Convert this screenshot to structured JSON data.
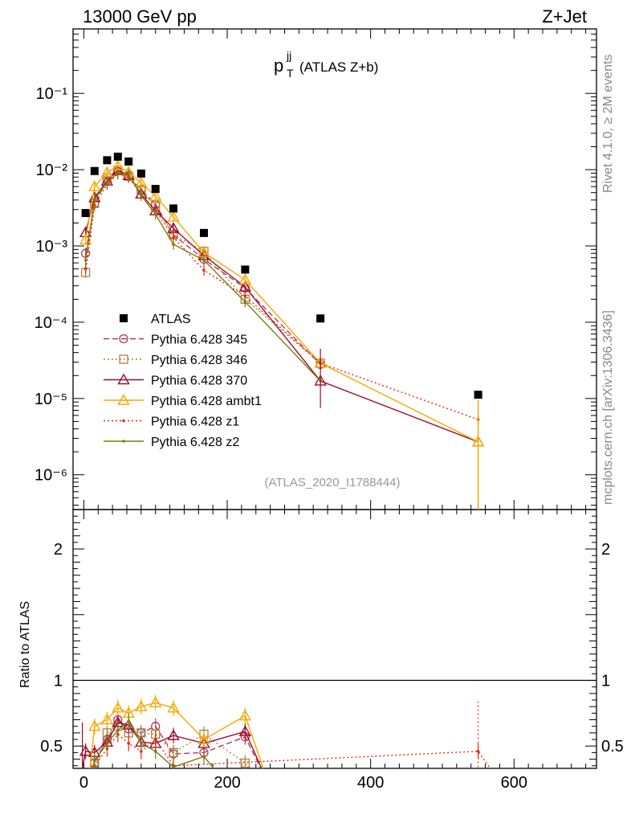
{
  "header": {
    "left": "13000 GeV pp",
    "right": "Z+Jet"
  },
  "side_labels": {
    "rivet": "Rivet 4.1.0, ≥ 2M events",
    "source": "mcplots.cern.ch [arXiv:1306.3436]"
  },
  "chart_data": {
    "type": "line",
    "title_main": "p",
    "title_sup": "jj",
    "title_sub": "T",
    "title_rest": "(ATLAS Z+b)",
    "analysis_tag": "(ATLAS_2020_I1788444)",
    "ratio_ylabel": "Ratio to ATLAS",
    "top_yticks": [
      "10⁻¹",
      "10⁻²",
      "10⁻³",
      "10⁻⁴",
      "10⁻⁵",
      "10⁻⁶"
    ],
    "top_ytick_values": [
      0.1,
      0.01,
      0.001,
      0.0001,
      1e-05,
      1e-06
    ],
    "ratio_yticks": [
      "2",
      "1",
      "0.5"
    ],
    "ratio_ytick_values": [
      2,
      1,
      0.5
    ],
    "xticks": [
      "0",
      "200",
      "400",
      "600"
    ],
    "xtick_values": [
      0,
      200,
      400,
      600
    ],
    "xlim": [
      -15,
      715
    ],
    "top_ylim": [
      3.5e-07,
      0.7
    ],
    "ratio_ylim": [
      0.33,
      2.3
    ],
    "x": [
      2.5,
      15,
      32.5,
      47.5,
      62.5,
      80,
      100,
      125,
      167.5,
      225,
      330,
      550
    ],
    "data": {
      "name": "ATLAS",
      "color": "#000000",
      "values": [
        0.0027,
        0.0096,
        0.0133,
        0.0148,
        0.0128,
        0.0089,
        0.0056,
        0.0031,
        0.00148,
        0.00049,
        0.000112,
        1.12e-05
      ]
    },
    "series": [
      {
        "name": "Pythia 6.428 345",
        "color": "#b2385c",
        "dash": "7,4",
        "marker": "circle",
        "values": [
          0.0008,
          0.0036,
          0.0073,
          0.0097,
          0.0083,
          0.0055,
          0.0035,
          0.0014,
          0.00067,
          0.00028,
          2.8e-05,
          null
        ],
        "ratio": [
          null,
          0.37,
          0.55,
          0.7,
          0.63,
          0.6,
          0.65,
          0.44,
          0.45,
          0.57,
          null,
          null
        ]
      },
      {
        "name": "Pythia 6.428 346",
        "color": "#a8843f",
        "dash": "2,3",
        "marker": "square",
        "values": [
          0.00045,
          0.0036,
          0.0078,
          0.0097,
          0.0082,
          0.0054,
          0.0033,
          0.0014,
          0.00085,
          0.0002,
          2.9e-05,
          null
        ],
        "ratio": [
          null,
          0.37,
          0.6,
          0.65,
          0.6,
          0.6,
          0.59,
          0.45,
          0.59,
          0.37,
          null,
          null
        ]
      },
      {
        "name": "Pythia 6.428 370",
        "color": "#9b0e30",
        "dash": "",
        "marker": "triangle",
        "values": [
          0.0015,
          0.0043,
          0.0071,
          0.0098,
          0.0084,
          0.0048,
          0.0029,
          0.0017,
          0.00075,
          0.00029,
          1.7e-05,
          2.7e-06
        ],
        "ratio": [
          0.46,
          0.45,
          0.53,
          0.68,
          0.66,
          0.53,
          0.52,
          0.58,
          0.52,
          0.61,
          null,
          null
        ]
      },
      {
        "name": "Pythia 6.428 ambt1",
        "color": "#f5a800",
        "dash": "",
        "marker": "triangle",
        "values": [
          0.0012,
          0.006,
          0.0092,
          0.0112,
          0.0093,
          0.0067,
          0.0045,
          0.0024,
          0.00082,
          0.00036,
          2.9e-05,
          2.7e-06
        ],
        "ratio": [
          null,
          0.65,
          0.7,
          0.79,
          0.75,
          0.8,
          0.83,
          0.79,
          0.55,
          0.73,
          null,
          null
        ]
      },
      {
        "name": "Pythia 6.428 z1",
        "color": "#e8290c",
        "dash": "2,3",
        "marker": "dot",
        "values": [
          0.0005,
          0.0034,
          0.0064,
          0.0088,
          0.0079,
          0.0048,
          0.0029,
          0.0013,
          0.00048,
          0.00022,
          2.9e-05,
          5.3e-06
        ],
        "ratio": [
          null,
          0.35,
          0.48,
          0.59,
          0.52,
          0.46,
          0.55,
          0.35,
          null,
          null,
          null,
          0.46
        ]
      },
      {
        "name": "Pythia 6.428 z2",
        "color": "#7c7a12",
        "dash": "",
        "marker": "dot",
        "values": [
          0.00065,
          0.0041,
          0.0068,
          0.0091,
          0.0086,
          0.0046,
          0.0026,
          0.00105,
          0.00065,
          0.000185,
          1.7e-05,
          null
        ],
        "ratio": [
          null,
          0.39,
          0.52,
          0.62,
          0.69,
          0.52,
          0.46,
          0.34,
          0.42,
          null,
          null,
          null
        ]
      }
    ]
  }
}
